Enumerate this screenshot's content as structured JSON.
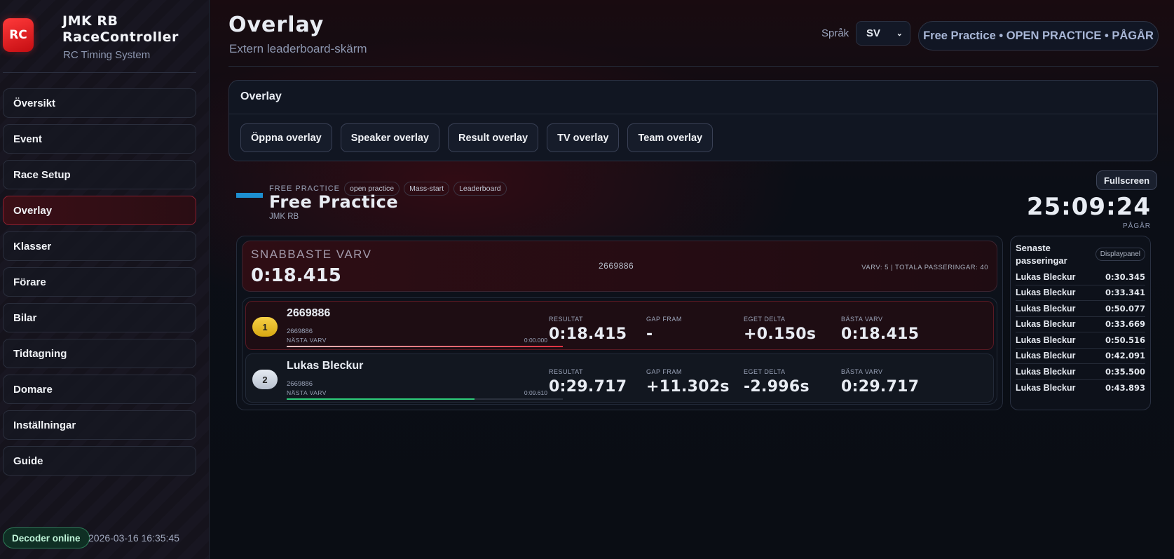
{
  "sidebar": {
    "logo": "RC",
    "brand_line1": "JMK RB",
    "brand_line2": "RaceController",
    "subtitle": "RC Timing System",
    "items": [
      {
        "label": "Översikt"
      },
      {
        "label": "Event"
      },
      {
        "label": "Race Setup"
      },
      {
        "label": "Overlay",
        "active": true
      },
      {
        "label": "Klasser"
      },
      {
        "label": "Förare"
      },
      {
        "label": "Bilar"
      },
      {
        "label": "Tidtagning"
      },
      {
        "label": "Domare"
      },
      {
        "label": "Inställningar"
      },
      {
        "label": "Guide"
      }
    ],
    "decoder_status": "Decoder online",
    "timestamp": "2026-03-16 16:35:45"
  },
  "header": {
    "title": "Overlay",
    "subtitle": "Extern leaderboard-skärm",
    "language_label": "Språk",
    "language_value": "SV",
    "status": "Free Practice • OPEN PRACTICE • PÅGÅR"
  },
  "overlay_card": {
    "title": "Overlay",
    "buttons": [
      "Öppna overlay",
      "Speaker overlay",
      "Result overlay",
      "TV overlay",
      "Team overlay"
    ]
  },
  "race": {
    "kind": "FREE PRACTICE",
    "chips": [
      "open practice",
      "Mass-start",
      "Leaderboard"
    ],
    "name": "Free Practice",
    "club": "JMK RB",
    "fullscreen_label": "Fullscreen",
    "clock": "25:09:24",
    "clock_status": "PÅGÅR"
  },
  "fastest": {
    "label": "SNABBASTE VARV",
    "time": "0:18.415",
    "driver": "2669886",
    "summary": "VARV: 5 | TOTALA PASSERINGAR: 40"
  },
  "stat_labels": {
    "result": "RESULTAT",
    "gap": "GAP FRAM",
    "delta": "EGET DELTA",
    "best": "BÄSTA VARV",
    "next_lap": "NÄSTA VARV"
  },
  "rows": [
    {
      "pos": "1",
      "name": "2669886",
      "transponder": "2669886",
      "next_time": "0:00.000",
      "progress": 1.0,
      "result": "0:18.415",
      "gap": "-",
      "delta": "+0.150s",
      "best": "0:18.415"
    },
    {
      "pos": "2",
      "name": "Lukas Bleckur",
      "transponder": "2669886",
      "next_time": "0:09.610",
      "progress": 0.68,
      "result": "0:29.717",
      "gap": "+11.302s",
      "delta": "-2.996s",
      "best": "0:29.717"
    }
  ],
  "passings": {
    "title_line1": "Senaste",
    "title_line2": "passeringar",
    "display_button": "Displaypanel",
    "items": [
      {
        "name": "Lukas Bleckur",
        "time": "0:30.345"
      },
      {
        "name": "Lukas Bleckur",
        "time": "0:33.341"
      },
      {
        "name": "Lukas Bleckur",
        "time": "0:50.077"
      },
      {
        "name": "Lukas Bleckur",
        "time": "0:33.669"
      },
      {
        "name": "Lukas Bleckur",
        "time": "0:50.516"
      },
      {
        "name": "Lukas Bleckur",
        "time": "0:42.091"
      },
      {
        "name": "Lukas Bleckur",
        "time": "0:35.500"
      },
      {
        "name": "Lukas Bleckur",
        "time": "0:43.893"
      }
    ]
  },
  "colors": {
    "accent": "#e0192a",
    "p1_bar": "#e03040",
    "p2_bar": "#2ecc7a",
    "online": "#2c7a57"
  }
}
